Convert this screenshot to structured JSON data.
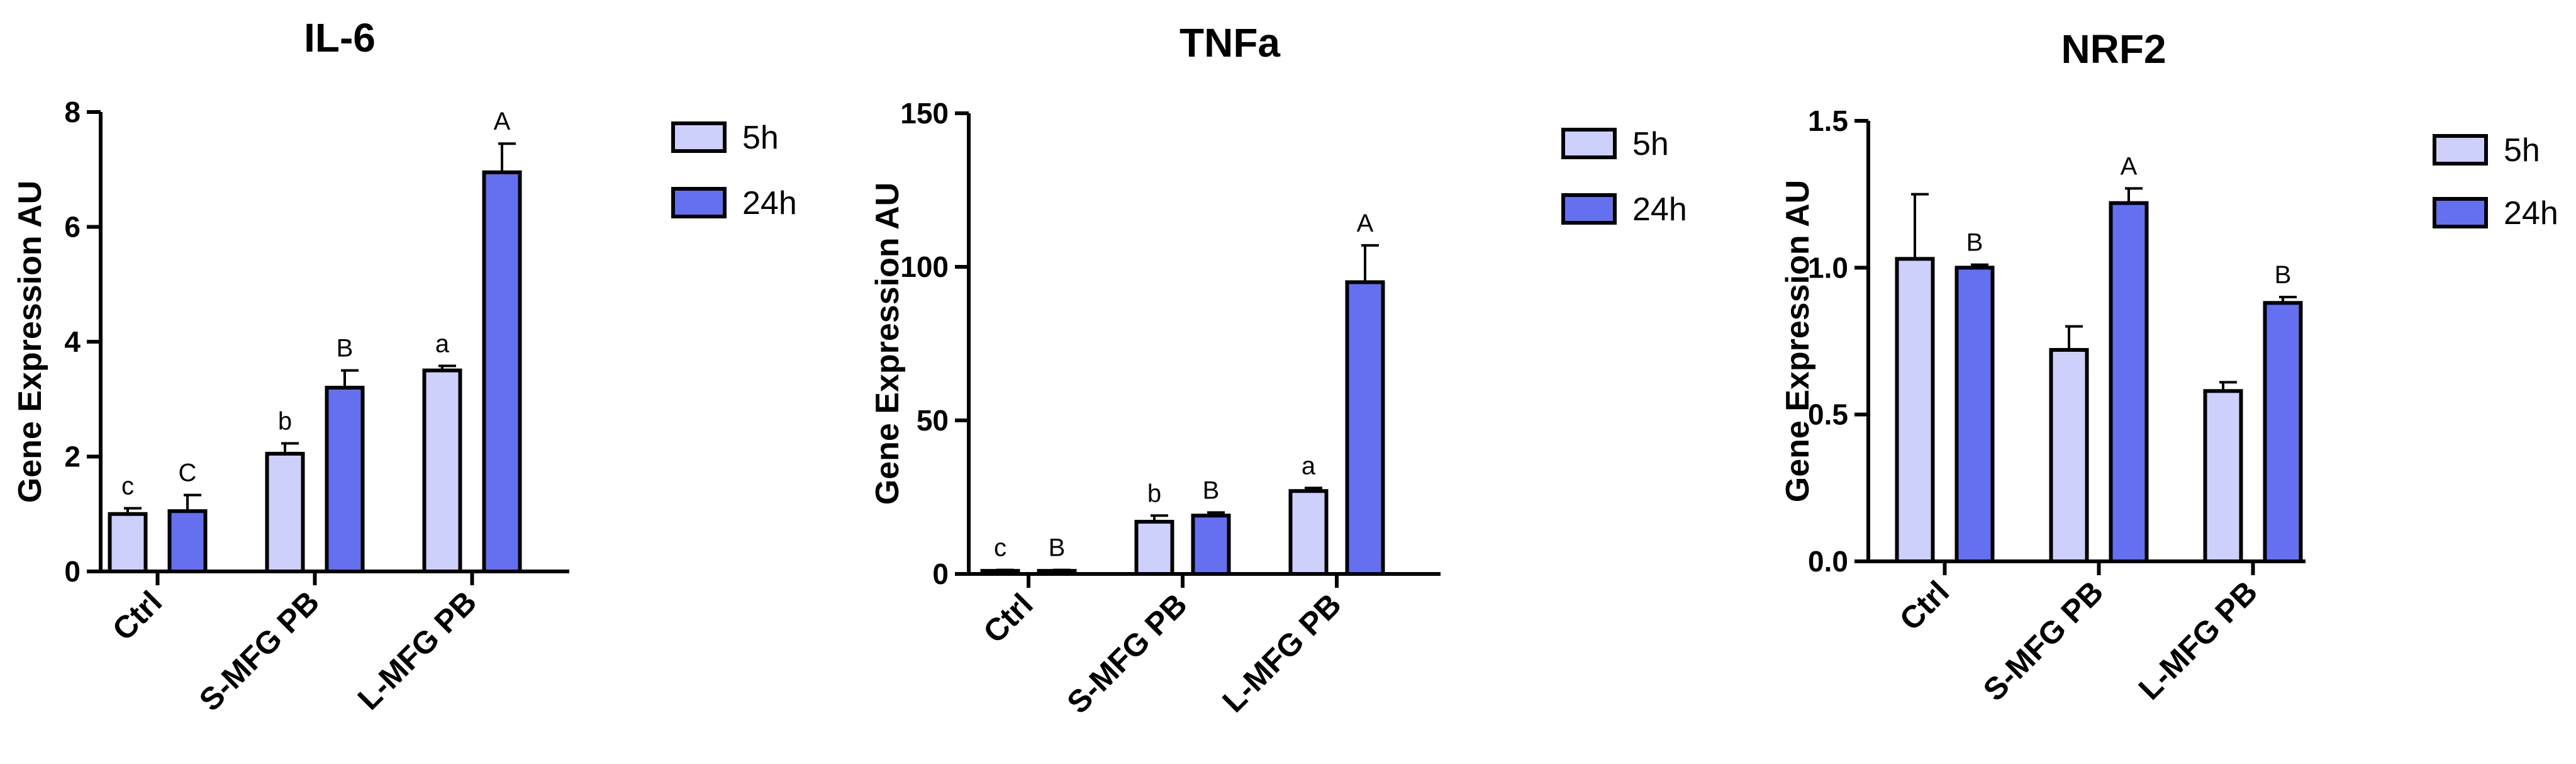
{
  "chart_data": [
    {
      "type": "bar",
      "title": "IL-6",
      "ylabel": "Gene Expression AU",
      "xlabel": "",
      "ylim": [
        0,
        8
      ],
      "yticks": [
        0,
        2,
        4,
        6,
        8
      ],
      "categories": [
        "Ctrl",
        "S-MFG PB",
        "L-MFG PB"
      ],
      "legend_position": "right",
      "series": [
        {
          "name": "5h",
          "color": "#cdd0fb",
          "values": [
            1.0,
            2.05,
            3.5
          ],
          "errors": [
            0.1,
            0.18,
            0.08
          ],
          "letters": [
            "c",
            "b",
            "a"
          ]
        },
        {
          "name": "24h",
          "color": "#6470f0",
          "values": [
            1.05,
            3.2,
            6.95
          ],
          "errors": [
            0.28,
            0.3,
            0.5
          ],
          "letters": [
            "C",
            "B",
            "A"
          ]
        }
      ]
    },
    {
      "type": "bar",
      "title": "TNFa",
      "ylabel": "Gene Expression AU",
      "xlabel": "",
      "ylim": [
        0,
        150
      ],
      "yticks": [
        0,
        50,
        100,
        150
      ],
      "categories": [
        "Ctrl",
        "S-MFG PB",
        "L-MFG PB"
      ],
      "legend_position": "right",
      "series": [
        {
          "name": "5h",
          "color": "#cdd0fb",
          "values": [
            1,
            17,
            27
          ],
          "errors": [
            0.3,
            2,
            1
          ],
          "letters": [
            "c",
            "b",
            "a"
          ]
        },
        {
          "name": "24h",
          "color": "#6470f0",
          "values": [
            1,
            19,
            95
          ],
          "errors": [
            0.3,
            1,
            12
          ],
          "letters": [
            "B",
            "B",
            "A"
          ]
        }
      ]
    },
    {
      "type": "bar",
      "title": "NRF2",
      "ylabel": "Gene Expression AU",
      "xlabel": "",
      "ylim": [
        0,
        1.5
      ],
      "yticks": [
        0.0,
        0.5,
        1.0,
        1.5
      ],
      "tick_decimals": 1,
      "categories": [
        "Ctrl",
        "S-MFG PB",
        "L-MFG PB"
      ],
      "legend_position": "right",
      "series": [
        {
          "name": "5h",
          "color": "#cdd0fb",
          "values": [
            1.03,
            0.72,
            0.58
          ],
          "errors": [
            0.22,
            0.08,
            0.03
          ],
          "letters": [
            "",
            "",
            ""
          ]
        },
        {
          "name": "24h",
          "color": "#6470f0",
          "values": [
            1.0,
            1.22,
            0.88
          ],
          "errors": [
            0.01,
            0.05,
            0.02
          ],
          "letters": [
            "B",
            "A",
            "B"
          ]
        }
      ]
    }
  ]
}
